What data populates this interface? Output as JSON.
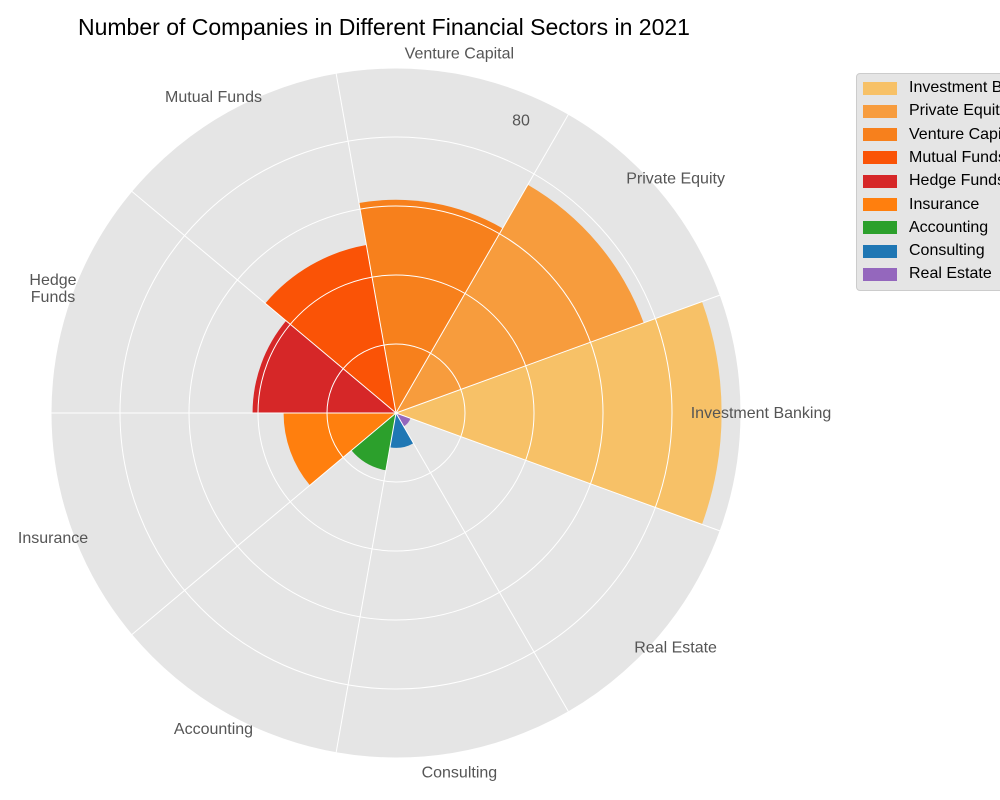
{
  "chart_data": {
    "type": "polar-bar",
    "title": "Number of Companies in Different Financial Sectors in 2021",
    "categories": [
      "Investment Banking",
      "Private Equity",
      "Venture Capital",
      "Mutual Funds",
      "Hedge Funds",
      "Insurance",
      "Accounting",
      "Consulting",
      "Real Estate"
    ],
    "category_labels": [
      "Investment Banking",
      "Private Equity",
      "Venture Capital",
      "Mutual Funds",
      "Hedge\nFunds",
      "Insurance",
      "Accounting",
      "Consulting",
      "Real Estate"
    ],
    "values": [
      84,
      68,
      55,
      44,
      37,
      29,
      15,
      9,
      4
    ],
    "colors": [
      "#f7c167",
      "#f79c3d",
      "#f7801c",
      "#fa5306",
      "#d62728",
      "#ff7f0e",
      "#2ca02c",
      "#1f77b4",
      "#9467bd"
    ],
    "radial_max": 89,
    "radial_ticks": [
      80
    ],
    "grid": true,
    "legend_position": "upper-right-outside",
    "legend": [
      "Investment Banking",
      "Private Equity",
      "Venture Capital",
      "Mutual Funds",
      "Hedge Funds",
      "Insurance",
      "Accounting",
      "Consulting",
      "Real Estate"
    ]
  }
}
